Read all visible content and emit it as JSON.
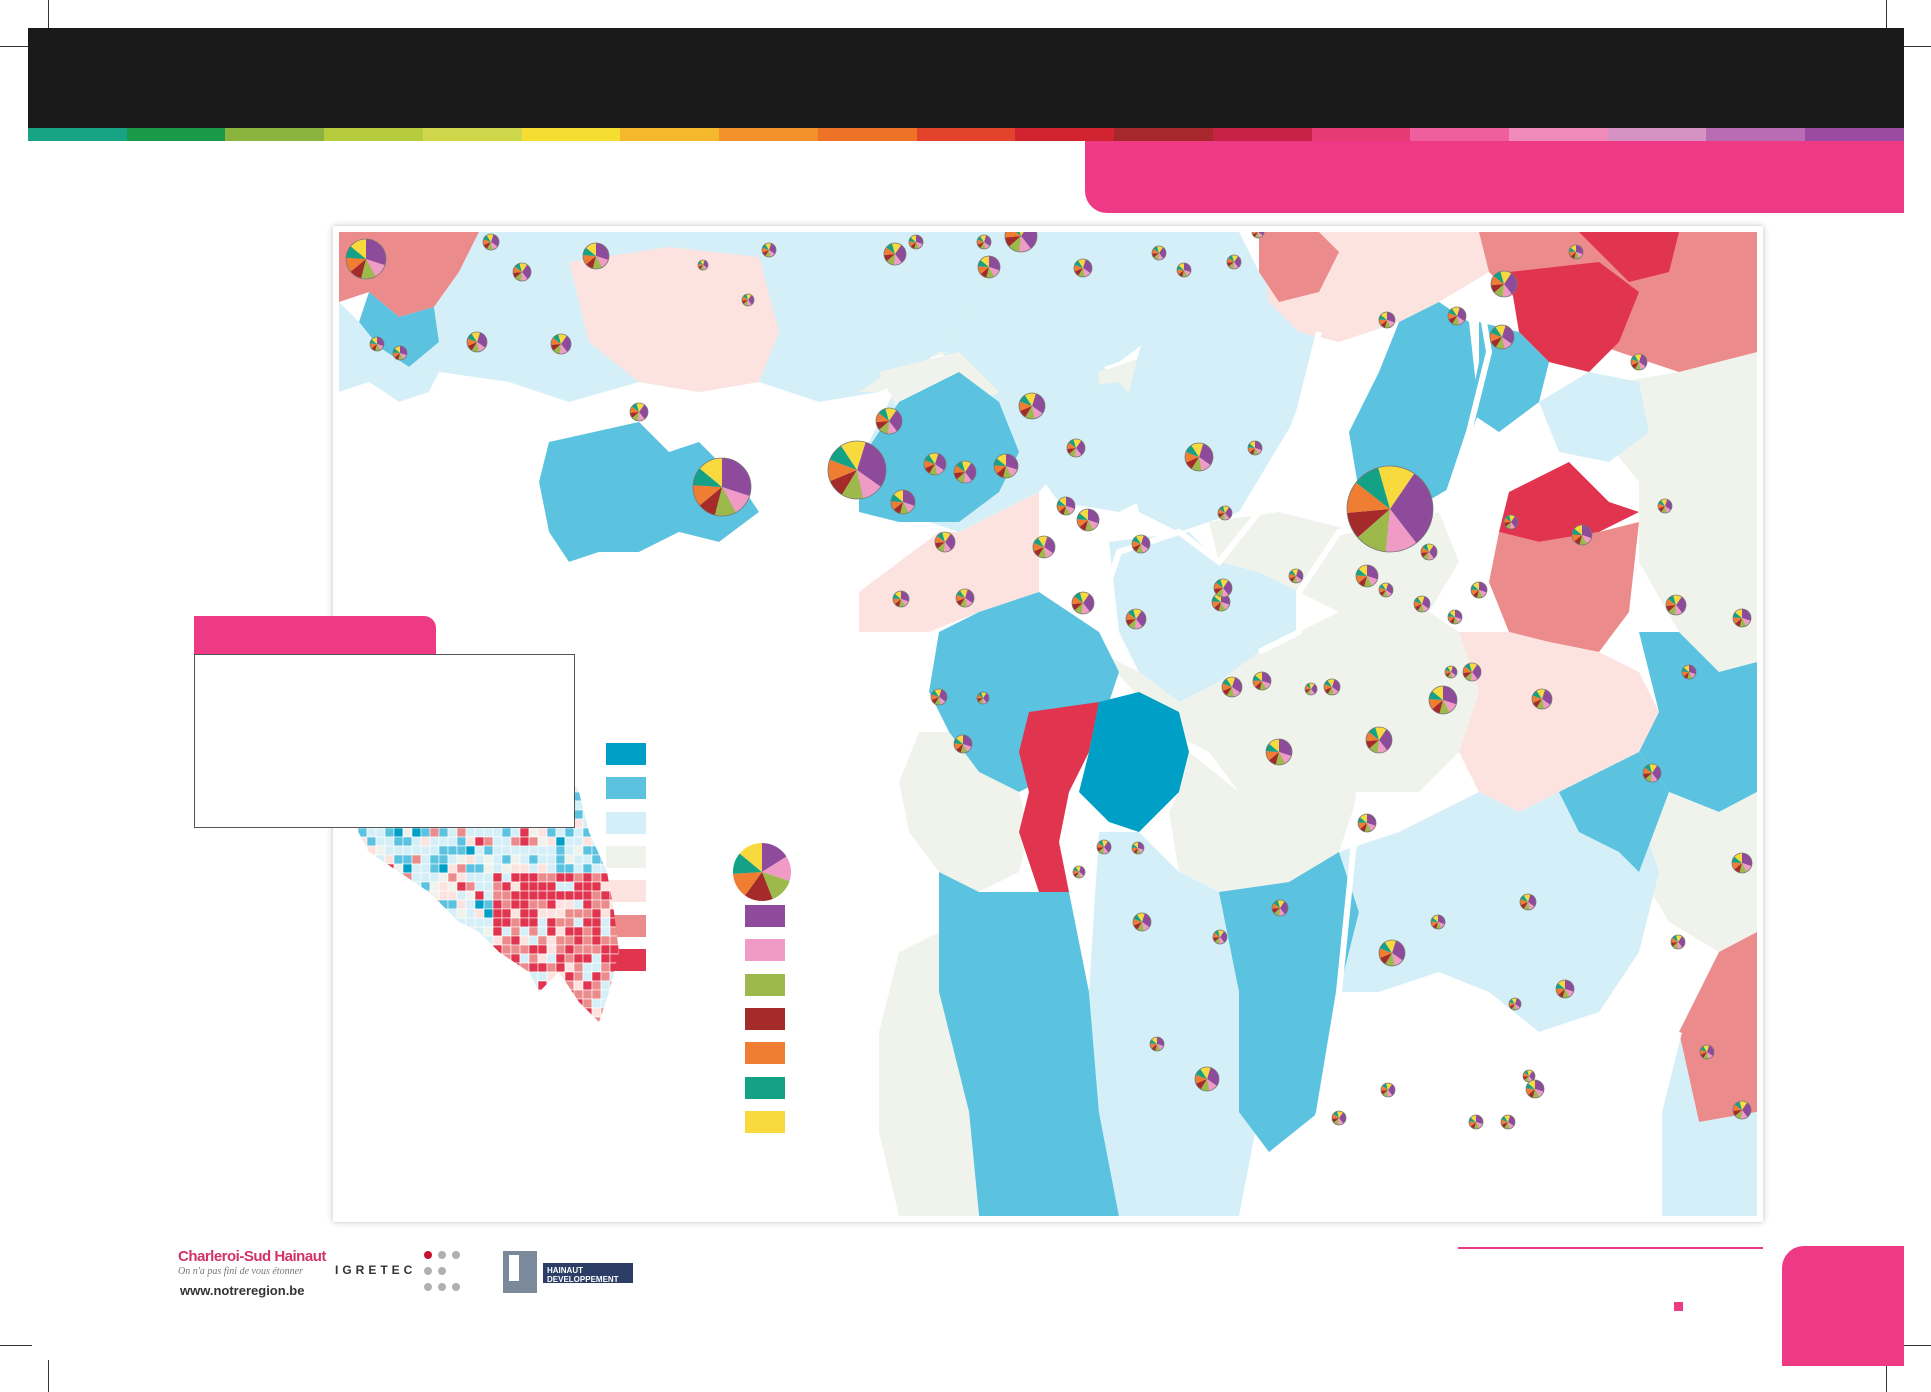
{
  "header": {
    "title": "",
    "stripe_colors": [
      "#17a484",
      "#1a9a48",
      "#8ab43e",
      "#b6cc3c",
      "#cfd74a",
      "#f6dd32",
      "#f5b72c",
      "#f3922a",
      "#ef7326",
      "#e3432a",
      "#d22430",
      "#a7282c",
      "#c72245",
      "#e63a74",
      "#ef5f9e",
      "#f08ab9",
      "#d792c4",
      "#b96bb4",
      "#9b4aa2"
    ]
  },
  "map": {
    "class_colors": [
      "#00a0c6",
      "#5bc2e0",
      "#d4eff7",
      "#f0f3ec",
      "#fde3df",
      "#ec8b8b",
      "#e0344f"
    ],
    "pie_categories": [
      "#8e4a9b",
      "#f09bc5",
      "#9db84b",
      "#a52a2a",
      "#ef7d32",
      "#13a286",
      "#f8d93e"
    ],
    "legend_title": "",
    "legend_text": ""
  },
  "footer": {
    "logo1_name": "Charleroi-Sud Hainaut",
    "logo1_tagline": "On n'a pas fini de vous étonner",
    "logo1_url": "www.notreregion.be",
    "logo2_name": "IGRETEC",
    "logo3_name": "HAINAUT DEVELOPPEMENT"
  }
}
